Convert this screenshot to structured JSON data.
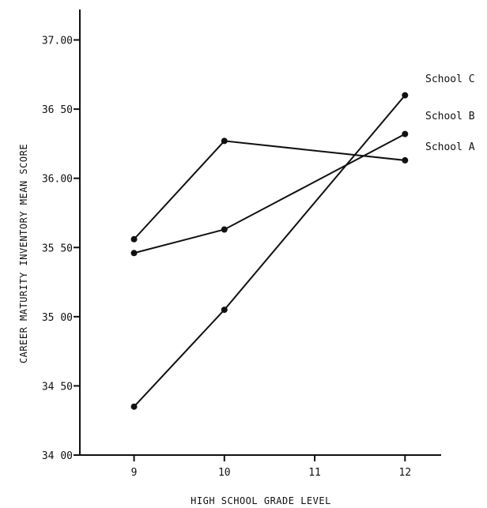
{
  "chart_data": {
    "type": "line",
    "title": "",
    "xlabel": "HIGH SCHOOL GRADE LEVEL",
    "ylabel": "CAREER MATURITY INVENTORY MEAN SCORE",
    "x_ticks": [
      9,
      10,
      11,
      12
    ],
    "x_tick_labels": [
      "9",
      "10",
      "11",
      "12"
    ],
    "xlim": [
      8.4,
      12.4
    ],
    "y_ticks": [
      34.0,
      34.5,
      35.0,
      35.5,
      36.0,
      36.5,
      37.0
    ],
    "y_tick_labels": [
      "34 00",
      "34 50",
      "35 00",
      "35 50",
      "36.00",
      "36 50",
      "37.00"
    ],
    "ylim": [
      34.0,
      37.22
    ],
    "grid": false,
    "legend": "labels at line ends, right",
    "series": [
      {
        "name": "School C",
        "x": [
          9,
          10,
          12
        ],
        "y": [
          34.35,
          35.05,
          36.6
        ]
      },
      {
        "name": "School B",
        "x": [
          9,
          10,
          12
        ],
        "y": [
          35.46,
          35.63,
          36.32
        ]
      },
      {
        "name": "School A",
        "x": [
          9,
          10,
          12
        ],
        "y": [
          35.56,
          36.27,
          36.13
        ]
      }
    ],
    "color": "#111111"
  }
}
